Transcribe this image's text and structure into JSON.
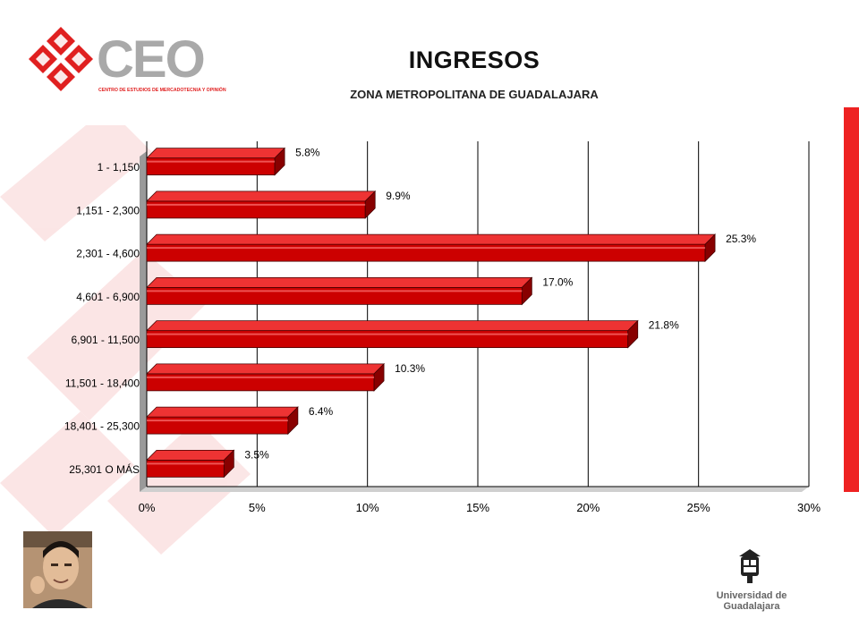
{
  "header": {
    "logo_text": "CEO",
    "logo_tagline": "CENTRO DE ESTUDIOS DE MERCADOTECNIA Y OPINIÓN",
    "title": "INGRESOS",
    "subtitle": "ZONA METROPOLITANA DE GUADALAJARA"
  },
  "footer": {
    "institution": "Universidad de Guadalajara"
  },
  "colors": {
    "bar": "#cc0000",
    "bar_top": "#ee3333",
    "bar_side": "#880000",
    "accent": "#ee2222"
  },
  "chart_data": {
    "type": "bar",
    "orientation": "horizontal",
    "categories": [
      "1 - 1,150",
      "1,151 - 2,300",
      "2,301 - 4,600",
      "4,601 - 6,900",
      "6,901 - 11,500",
      "11,501 - 18,400",
      "18,401 - 25,300",
      "25,301 O MÁS"
    ],
    "values": [
      5.8,
      9.9,
      25.3,
      17.0,
      21.8,
      10.3,
      6.4,
      3.5
    ],
    "value_labels": [
      "5.8%",
      "9.9%",
      "25.3%",
      "17.0%",
      "21.8%",
      "10.3%",
      "6.4%",
      "3.5%"
    ],
    "xlim": [
      0,
      30
    ],
    "xticks": [
      "0%",
      "5%",
      "10%",
      "15%",
      "20%",
      "25%",
      "30%"
    ],
    "grid": true
  }
}
